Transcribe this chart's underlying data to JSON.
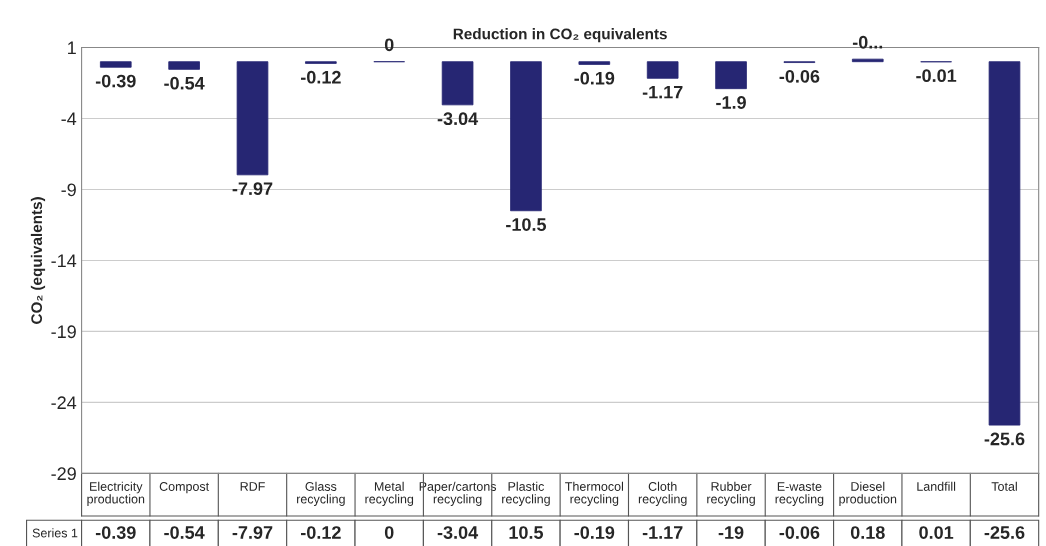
{
  "chart_data": {
    "type": "bar",
    "title": "Reduction in CO₂ equivalents",
    "ylabel": "CO₂ (equivalents)",
    "categories": [
      "Electricity\nproduction",
      "Compost",
      "RDF",
      "Glass\nrecycling",
      "Metal\nrecycling",
      "Paper/cartons\nrecycling",
      "Plastic\nrecycling",
      "Thermocol\nrecycling",
      "Cloth\nrecycling",
      "Rubber\nrecycling",
      "E-waste\nrecycling",
      "Diesel\nproduction",
      "Landfill",
      "Total"
    ],
    "series": [
      {
        "name": "Series 1",
        "color": "#262673",
        "values": [
          -0.39,
          -0.54,
          -7.97,
          -0.12,
          0,
          -3.04,
          -10.5,
          -0.19,
          -1.17,
          -1.9,
          -0.06,
          0.18,
          -0.01,
          -25.6
        ],
        "value_labels": [
          "-0.39",
          "-0.54",
          "-7.97",
          "-0.12",
          "0",
          "-3.04",
          "-10.5",
          "-0.19",
          "-1.17",
          "-1.9",
          "-0.06",
          "-0...",
          "-0.01",
          "-25.6"
        ]
      }
    ],
    "annotations": [
      "-0.39",
      "-0.54",
      "-7.97",
      "-0.12",
      "0",
      "-3.04",
      "10.5",
      "-0.19",
      "-1.17",
      "-19",
      "-0.06",
      "0.18",
      "0.01",
      "-25.6"
    ],
    "ylim": [
      -29,
      1
    ],
    "yticks": [
      1,
      -4,
      -9,
      -14,
      -19,
      -24,
      -29
    ],
    "grid": "y",
    "legend": false
  }
}
